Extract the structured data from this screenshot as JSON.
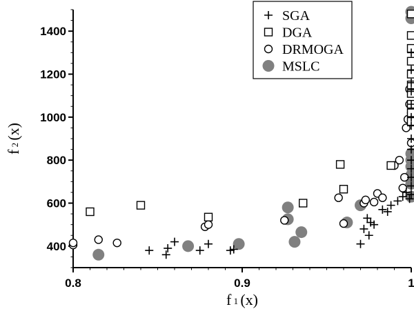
{
  "chart_data": {
    "type": "scatter",
    "xlabel": {
      "main": "f",
      "sub": "1",
      "rest": "(x)"
    },
    "ylabel": {
      "main": "f",
      "sub": "2",
      "rest": "(x)"
    },
    "xlim": [
      0.8,
      1.0
    ],
    "ylim": [
      300,
      1500
    ],
    "x_ticks": [
      0.8,
      0.9,
      1.0
    ],
    "x_tick_labels": [
      "0.8",
      "0.9",
      "1"
    ],
    "y_ticks": [
      400,
      600,
      800,
      1000,
      1200,
      1400
    ],
    "y_tick_labels": [
      "400",
      "600",
      "800",
      "1000",
      "1200",
      "1400"
    ],
    "grid": false,
    "legend_position": "top-right",
    "series": [
      {
        "name": "SGA",
        "marker": "plus",
        "points": [
          [
            0.845,
            380
          ],
          [
            0.855,
            360
          ],
          [
            0.856,
            390
          ],
          [
            0.86,
            420
          ],
          [
            0.875,
            380
          ],
          [
            0.88,
            410
          ],
          [
            0.893,
            380
          ],
          [
            0.895,
            385
          ],
          [
            0.97,
            410
          ],
          [
            0.972,
            480
          ],
          [
            0.975,
            450
          ],
          [
            0.976,
            510
          ],
          [
            0.978,
            500
          ],
          [
            0.974,
            530
          ],
          [
            0.983,
            570
          ],
          [
            0.986,
            560
          ],
          [
            0.988,
            590
          ],
          [
            0.992,
            610
          ],
          [
            0.995,
            630
          ],
          [
            0.997,
            650
          ],
          [
            0.999,
            620
          ],
          [
            1.0,
            640
          ],
          [
            1.0,
            680
          ],
          [
            1.0,
            720
          ],
          [
            1.0,
            760
          ],
          [
            1.0,
            800
          ],
          [
            1.0,
            850
          ],
          [
            1.0,
            900
          ],
          [
            1.0,
            960
          ],
          [
            1.0,
            1000
          ],
          [
            1.0,
            1060
          ],
          [
            1.0,
            1120
          ],
          [
            1.0,
            1160
          ],
          [
            1.0,
            1220
          ],
          [
            1.0,
            1300
          ]
        ]
      },
      {
        "name": "DGA",
        "marker": "square",
        "points": [
          [
            0.81,
            560
          ],
          [
            0.84,
            590
          ],
          [
            0.88,
            535
          ],
          [
            0.936,
            600
          ],
          [
            0.958,
            780
          ],
          [
            0.96,
            665
          ],
          [
            0.988,
            775
          ],
          [
            1.0,
            980
          ],
          [
            1.0,
            1020
          ],
          [
            1.0,
            1060
          ],
          [
            1.0,
            1110
          ],
          [
            1.0,
            1150
          ],
          [
            1.0,
            1200
          ],
          [
            1.0,
            1260
          ],
          [
            1.0,
            1320
          ],
          [
            1.0,
            1380
          ],
          [
            1.0,
            1480
          ]
        ]
      },
      {
        "name": "DRMOGA",
        "marker": "circle",
        "points": [
          [
            0.8,
            405
          ],
          [
            0.8,
            415
          ],
          [
            0.815,
            430
          ],
          [
            0.826,
            415
          ],
          [
            0.878,
            490
          ],
          [
            0.88,
            500
          ],
          [
            0.925,
            520
          ],
          [
            0.957,
            625
          ],
          [
            0.96,
            505
          ],
          [
            0.972,
            600
          ],
          [
            0.973,
            615
          ],
          [
            0.978,
            605
          ],
          [
            0.98,
            645
          ],
          [
            0.983,
            625
          ],
          [
            0.99,
            775
          ],
          [
            0.993,
            800
          ],
          [
            0.995,
            670
          ],
          [
            0.996,
            720
          ],
          [
            0.997,
            950
          ],
          [
            0.998,
            990
          ],
          [
            0.999,
            1060
          ],
          [
            0.999,
            1130
          ],
          [
            1.0,
            880
          ],
          [
            1.0,
            1020
          ]
        ]
      },
      {
        "name": "MSLC",
        "marker": "filled-circle",
        "points": [
          [
            0.815,
            360
          ],
          [
            0.868,
            400
          ],
          [
            0.898,
            410
          ],
          [
            0.927,
            580
          ],
          [
            0.927,
            525
          ],
          [
            0.931,
            420
          ],
          [
            0.935,
            465
          ],
          [
            0.962,
            510
          ],
          [
            0.97,
            590
          ],
          [
            1.0,
            630
          ],
          [
            1.0,
            690
          ],
          [
            1.0,
            730
          ],
          [
            1.0,
            770
          ],
          [
            1.0,
            800
          ],
          [
            1.0,
            830
          ],
          [
            1.0,
            1490
          ],
          [
            1.0,
            1460
          ]
        ]
      }
    ]
  }
}
